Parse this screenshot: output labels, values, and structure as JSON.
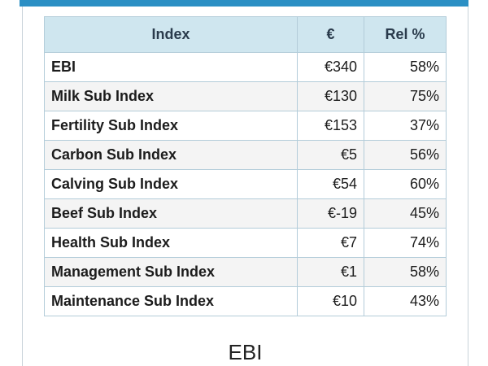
{
  "table": {
    "headers": [
      "Index",
      "€",
      "Rel %"
    ],
    "rows": [
      {
        "name": "EBI",
        "euro": "€340",
        "rel": "58%"
      },
      {
        "name": "Milk Sub Index",
        "euro": "€130",
        "rel": "75%"
      },
      {
        "name": "Fertility Sub Index",
        "euro": "€153",
        "rel": "37%"
      },
      {
        "name": "Carbon Sub Index",
        "euro": "€5",
        "rel": "56%"
      },
      {
        "name": "Calving Sub Index",
        "euro": "€54",
        "rel": "60%"
      },
      {
        "name": "Beef Sub Index",
        "euro": "€-19",
        "rel": "45%"
      },
      {
        "name": "Health Sub Index",
        "euro": "€7",
        "rel": "74%"
      },
      {
        "name": "Management Sub Index",
        "euro": "€1",
        "rel": "58%"
      },
      {
        "name": "Maintenance Sub Index",
        "euro": "€10",
        "rel": "43%"
      }
    ]
  },
  "footer": {
    "title": "EBI"
  },
  "colors": {
    "accent": "#2b8fc4",
    "header_bg": "#cfe6ef",
    "border": "#b3ccd9"
  }
}
